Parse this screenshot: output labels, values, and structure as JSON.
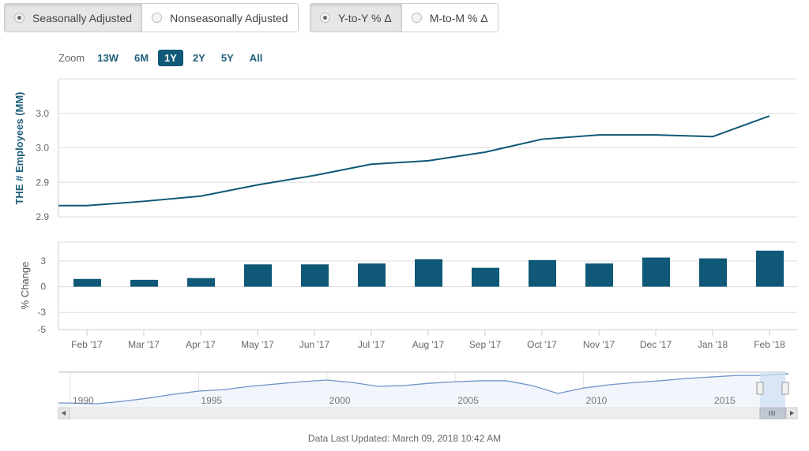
{
  "adjustment_toggle": {
    "options": [
      "Seasonally Adjusted",
      "Nonseasonally Adjusted"
    ],
    "selected": 0
  },
  "change_toggle": {
    "options": [
      "Y-to-Y % Δ",
      "M-to-M % Δ"
    ],
    "selected": 0
  },
  "zoom": {
    "label": "Zoom",
    "buttons": [
      "13W",
      "6M",
      "1Y",
      "2Y",
      "5Y",
      "All"
    ],
    "active": "1Y"
  },
  "colors": {
    "series": "#0f5877",
    "navigator_line": "#6f94c8",
    "navigator_fill": "#f2f5fb",
    "selection": "#cfe0f3"
  },
  "chart_data": [
    {
      "type": "line",
      "ylabel": "THE # Employees (MM)",
      "categories": [
        "Feb '17",
        "Mar '17",
        "Apr '17",
        "May '17",
        "Jun '17",
        "Jul '17",
        "Aug '17",
        "Sep '17",
        "Oct '17",
        "Nov '17",
        "Dec '17",
        "Jan 2018",
        "Feb '18"
      ],
      "values": [
        2.893,
        2.898,
        2.904,
        2.917,
        2.928,
        2.941,
        2.945,
        2.955,
        2.97,
        2.975,
        2.975,
        2.973,
        2.997
      ],
      "yticks": [
        {
          "v": 2.88,
          "label": "2.9"
        },
        {
          "v": 2.92,
          "label": "2.9"
        },
        {
          "v": 2.96,
          "label": "3.0"
        },
        {
          "v": 3.0,
          "label": "3.0"
        }
      ],
      "ylim": [
        2.88,
        3.04
      ],
      "grid": true
    },
    {
      "type": "bar",
      "ylabel": "% Change",
      "categories": [
        "Feb '17",
        "Mar '17",
        "Apr '17",
        "May '17",
        "Jun '17",
        "Jul '17",
        "Aug '17",
        "Sep '17",
        "Oct '17",
        "Nov '17",
        "Dec '17",
        "Jan '18",
        "Feb '18"
      ],
      "values": [
        0.9,
        0.8,
        1.0,
        2.6,
        2.6,
        2.7,
        3.2,
        2.2,
        3.1,
        2.7,
        3.4,
        3.3,
        4.2
      ],
      "yticks": [
        {
          "v": 3,
          "label": "3"
        },
        {
          "v": 0,
          "label": "0"
        },
        {
          "v": -3,
          "label": "-3"
        },
        {
          "v": -5,
          "label": "-5"
        }
      ],
      "ylim": [
        -5,
        5.2
      ],
      "grid": true
    },
    {
      "type": "area",
      "role": "navigator",
      "x": [
        1990,
        1991,
        1992,
        1993,
        1994,
        1995,
        1996,
        1997,
        1998,
        1999,
        2000,
        2001,
        2002,
        2003,
        2004,
        2005,
        2006,
        2007,
        2008,
        2009,
        2010,
        2011,
        2012,
        2013,
        2014,
        2015,
        2016,
        2017,
        2018
      ],
      "values": [
        1.15,
        1.1,
        1.25,
        1.46,
        1.71,
        1.92,
        2.02,
        2.23,
        2.38,
        2.53,
        2.64,
        2.48,
        2.23,
        2.28,
        2.43,
        2.53,
        2.59,
        2.59,
        2.28,
        1.77,
        2.12,
        2.33,
        2.48,
        2.59,
        2.74,
        2.84,
        2.94,
        2.94,
        3.05
      ],
      "xticks": [
        "1990",
        "1995",
        "2000",
        "2005",
        "2010",
        "2015"
      ],
      "selected_range": [
        "Feb '17",
        "Feb '18"
      ]
    }
  ],
  "footer": {
    "updated": "Data Last Updated: March 09, 2018 10:42 AM"
  }
}
